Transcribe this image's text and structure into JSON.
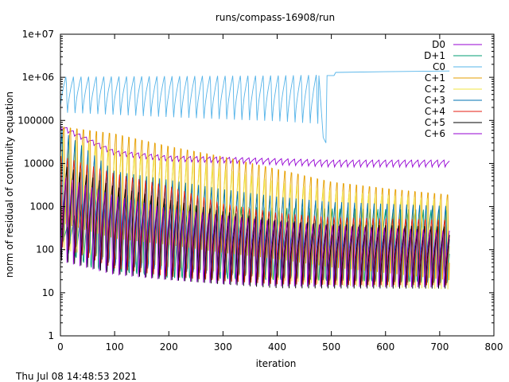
{
  "chart_data": {
    "type": "line",
    "title": "runs/compass-16908/run",
    "xlabel": "iteration",
    "ylabel": "norm of residual of continuity equation",
    "xlim": [
      0,
      800
    ],
    "ylim": [
      1,
      10000000
    ],
    "yscale": "log",
    "grid": false,
    "legend_position": "top-right",
    "x_ticks": [
      0,
      100,
      200,
      300,
      400,
      500,
      600,
      700,
      800
    ],
    "y_ticks": [
      {
        "value": 1,
        "label": "1"
      },
      {
        "value": 10,
        "label": "10"
      },
      {
        "value": 100,
        "label": "100"
      },
      {
        "value": 1000,
        "label": "1000"
      },
      {
        "value": 10000,
        "label": "10000"
      },
      {
        "value": 100000,
        "label": "100000"
      },
      {
        "value": 1000000,
        "label": "1e+06"
      },
      {
        "value": 10000000,
        "label": "1e+07"
      }
    ],
    "series": [
      {
        "name": "D0",
        "color": "#9400d3",
        "style": "oscillating",
        "cycle": 12,
        "start": 0,
        "end": 718,
        "upper": [
          [
            0,
            80000
          ],
          [
            100,
            20000
          ],
          [
            200,
            15000
          ],
          [
            300,
            14000
          ],
          [
            400,
            13000
          ],
          [
            500,
            12000
          ],
          [
            718,
            12000
          ]
        ],
        "lower": [
          [
            0,
            60000
          ],
          [
            100,
            15000
          ],
          [
            200,
            11000
          ],
          [
            300,
            10000
          ],
          [
            400,
            9000
          ],
          [
            500,
            8000
          ],
          [
            718,
            8000
          ]
        ]
      },
      {
        "name": "D+1",
        "color": "#009e73",
        "style": "oscillating",
        "cycle": 14,
        "start": 0,
        "end": 718,
        "upper": [
          [
            0,
            200
          ],
          [
            60,
            3000
          ],
          [
            200,
            1200
          ],
          [
            400,
            1000
          ],
          [
            718,
            900
          ]
        ],
        "lower": [
          [
            0,
            100
          ],
          [
            60,
            15
          ],
          [
            200,
            10
          ],
          [
            400,
            9
          ],
          [
            718,
            8
          ]
        ]
      },
      {
        "name": "C0",
        "color": "#56b4e9",
        "style": "oscillating",
        "cycle": 14,
        "start": 0,
        "end": 718,
        "upper": [
          [
            0,
            1100000
          ],
          [
            200,
            1150000
          ],
          [
            400,
            1200000
          ],
          [
            475,
            1250000
          ]
        ],
        "lower": [
          [
            0,
            120000
          ],
          [
            200,
            90000
          ],
          [
            400,
            70000
          ],
          [
            475,
            60000
          ]
        ],
        "tail": [
          [
            477,
            1100000
          ],
          [
            485,
            40000
          ],
          [
            490,
            30000
          ],
          [
            492,
            1100000
          ],
          [
            505,
            1100000
          ],
          [
            508,
            1300000
          ],
          [
            600,
            1350000
          ],
          [
            718,
            1400000
          ]
        ]
      },
      {
        "name": "C+1",
        "color": "#e69f00",
        "style": "oscillating",
        "cycle": 12,
        "start": 0,
        "end": 718,
        "upper": [
          [
            0,
            100000
          ],
          [
            100,
            70000
          ],
          [
            200,
            35000
          ],
          [
            300,
            20000
          ],
          [
            400,
            10000
          ],
          [
            500,
            5000
          ],
          [
            600,
            3500
          ],
          [
            718,
            2500
          ]
        ],
        "lower": [
          [
            0,
            200
          ],
          [
            100,
            80
          ],
          [
            200,
            60
          ],
          [
            300,
            40
          ],
          [
            400,
            30
          ],
          [
            500,
            20
          ],
          [
            600,
            15
          ],
          [
            718,
            10
          ]
        ]
      },
      {
        "name": "C+2",
        "color": "#f0e442",
        "style": "oscillating",
        "cycle": 12,
        "start": 0,
        "end": 718,
        "upper": [
          [
            0,
            40000
          ],
          [
            100,
            25000
          ],
          [
            200,
            15000
          ],
          [
            300,
            8000
          ],
          [
            400,
            4000
          ],
          [
            500,
            2500
          ],
          [
            718,
            1500
          ]
        ],
        "lower": [
          [
            0,
            100
          ],
          [
            100,
            60
          ],
          [
            200,
            40
          ],
          [
            300,
            30
          ],
          [
            400,
            20
          ],
          [
            500,
            15
          ],
          [
            718,
            12
          ]
        ]
      },
      {
        "name": "C+3",
        "color": "#0072b2",
        "style": "oscillating",
        "cycle": 12,
        "start": 0,
        "end": 718,
        "upper": [
          [
            0,
            80000
          ],
          [
            100,
            8000
          ],
          [
            200,
            5000
          ],
          [
            300,
            3000
          ],
          [
            400,
            2000
          ],
          [
            500,
            1500
          ],
          [
            718,
            1200
          ]
        ],
        "lower": [
          [
            0,
            50
          ],
          [
            100,
            15
          ],
          [
            200,
            12
          ],
          [
            300,
            10
          ],
          [
            400,
            9
          ],
          [
            500,
            8
          ],
          [
            718,
            7
          ]
        ]
      },
      {
        "name": "C+4",
        "color": "#e51e10",
        "style": "oscillating",
        "cycle": 12,
        "start": 0,
        "end": 718,
        "upper": [
          [
            0,
            20000
          ],
          [
            100,
            8000
          ],
          [
            200,
            4000
          ],
          [
            300,
            1500
          ],
          [
            400,
            900
          ],
          [
            500,
            700
          ],
          [
            718,
            600
          ]
        ],
        "lower": [
          [
            0,
            50
          ],
          [
            100,
            15
          ],
          [
            200,
            10
          ],
          [
            300,
            9
          ],
          [
            400,
            8
          ],
          [
            500,
            8
          ],
          [
            718,
            8
          ]
        ]
      },
      {
        "name": "C+5",
        "color": "#000000",
        "style": "oscillating",
        "cycle": 12,
        "start": 0,
        "end": 718,
        "upper": [
          [
            0,
            10000
          ],
          [
            100,
            3000
          ],
          [
            200,
            1500
          ],
          [
            300,
            800
          ],
          [
            400,
            500
          ],
          [
            500,
            400
          ],
          [
            718,
            350
          ]
        ],
        "lower": [
          [
            0,
            40
          ],
          [
            100,
            20
          ],
          [
            200,
            15
          ],
          [
            300,
            12
          ],
          [
            400,
            10
          ],
          [
            500,
            10
          ],
          [
            718,
            10
          ]
        ]
      },
      {
        "name": "C+6",
        "color": "#9400d3",
        "style": "oscillating",
        "cycle": 12,
        "start": 0,
        "end": 718,
        "upper": [
          [
            0,
            6000
          ],
          [
            100,
            2000
          ],
          [
            200,
            1000
          ],
          [
            300,
            700
          ],
          [
            400,
            500
          ],
          [
            500,
            400
          ],
          [
            718,
            300
          ]
        ],
        "lower": [
          [
            0,
            30
          ],
          [
            100,
            15
          ],
          [
            200,
            12
          ],
          [
            300,
            10
          ],
          [
            400,
            9
          ],
          [
            500,
            9
          ],
          [
            718,
            9
          ]
        ]
      }
    ]
  },
  "footer": {
    "timestamp": "Thu Jul 08 14:48:53 2021"
  }
}
